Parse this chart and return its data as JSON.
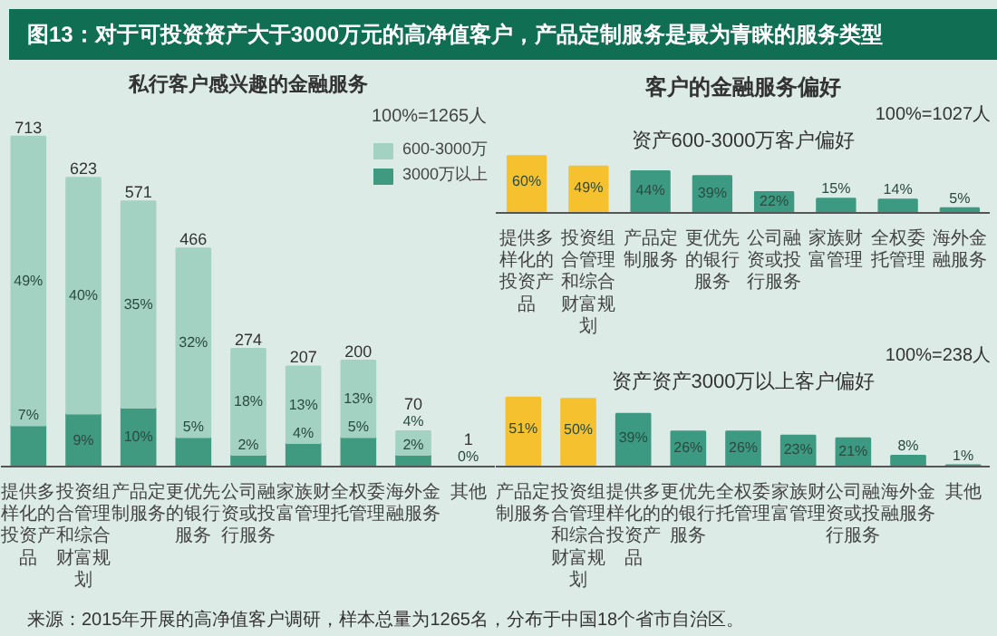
{
  "chart_data": [
    {
      "type": "bar",
      "title": "图13：对于可投资资产大于3000万元的高净值客户，产品定制服务是最为青睐的服务类型",
      "subtitle": "私行客户感兴趣的金融服务",
      "stacked": true,
      "legend": "top right",
      "legend_title": "100%=1265人",
      "tick_labels": "x",
      "grid": false,
      "categories": [
        "提供多样化的投资产品",
        "投资组合管理和综合财富规划",
        "产品定制服务",
        "更优先的银行服务",
        "公司融资或投行服务",
        "家族财富管理",
        "全权委托管理",
        "海外金融服务",
        "其他"
      ],
      "series": [
        {
          "name": "3000万以上",
          "color": "#3f9a80",
          "values": [
            7,
            9,
            10,
            5,
            2,
            4,
            5,
            2,
            0
          ],
          "value_labels": [
            "7%",
            "9%",
            "10%",
            "5%",
            "2%",
            "4%",
            "5%",
            "2%",
            "0%"
          ]
        },
        {
          "name": "600-3000万",
          "color": "#a3d2c3",
          "values": [
            49,
            40,
            35,
            32,
            18,
            13,
            13,
            4,
            null
          ],
          "value_labels": [
            "49%",
            "40%",
            "35%",
            "32%",
            "18%",
            "13%",
            "13%",
            "4%",
            null
          ]
        }
      ],
      "annotations": [
        {
          "text": "713",
          "x": "提供多样化的投资产品",
          "y": 56
        },
        {
          "text": "623",
          "x": "投资组合管理和综合财富规划",
          "y": 49
        },
        {
          "text": "571",
          "x": "产品定制服务",
          "y": 45
        },
        {
          "text": "466",
          "x": "更优先的银行服务",
          "y": 37
        },
        {
          "text": "274",
          "x": "公司融资或投行服务",
          "y": 20
        },
        {
          "text": "207",
          "x": "家族财富管理",
          "y": 17
        },
        {
          "text": "200",
          "x": "全权委托管理",
          "y": 18
        },
        {
          "text": "70",
          "x": "海外金融服务",
          "y": 6
        },
        {
          "text": "1",
          "x": "其他",
          "y": 0
        }
      ]
    },
    {
      "type": "bar",
      "title": "客户的金融服务偏好",
      "subtitle": "资产600-3000万客户偏好",
      "tick_labels": "x",
      "grid": false,
      "annotations": [
        "100%=1027人"
      ],
      "categories": [
        "提供多样化的投资产品",
        "投资组合管理和综合财富规划",
        "产品定制服务",
        "更优先的银行服务",
        "公司融资或投行服务",
        "家族财富管理",
        "全权委托管理",
        "海外金融服务"
      ],
      "values": [
        60,
        49,
        44,
        39,
        22,
        15,
        14,
        5
      ],
      "value_labels": [
        "60%",
        "49%",
        "44%",
        "39%",
        "22%",
        "15%",
        "14%",
        "5%"
      ],
      "colors": [
        "#f5c12e",
        "#f5c12e",
        "#3d9a82",
        "#3d9a82",
        "#3d9a82",
        "#3d9a82",
        "#3d9a82",
        "#3d9a82"
      ]
    },
    {
      "type": "bar",
      "subtitle": "资产资产3000万以上客户偏好",
      "tick_labels": "x",
      "grid": false,
      "annotations": [
        "100%=238人",
        "来源：2015年开展的高净值客户调研，样本总量为1265名，分布于中国18个省市自治区。"
      ],
      "categories": [
        "产品定制服务",
        "投资组合管理和综合财富规划",
        "提供多样化的投资产品",
        "更优先的银行服务",
        "全权委托管理",
        "家族财富管理",
        "公司融资或投行服务",
        "海外金融服务",
        "其他"
      ],
      "values": [
        51,
        50,
        39,
        26,
        26,
        23,
        21,
        8,
        1
      ],
      "value_labels": [
        "51%",
        "50%",
        "39%",
        "26%",
        "26%",
        "23%",
        "21%",
        "8%",
        "1%"
      ],
      "colors": [
        "#f5c12e",
        "#f5c12e",
        "#3d9a82",
        "#3d9a82",
        "#3d9a82",
        "#3d9a82",
        "#3d9a82",
        "#3d9a82",
        "#3d9a82"
      ]
    }
  ]
}
